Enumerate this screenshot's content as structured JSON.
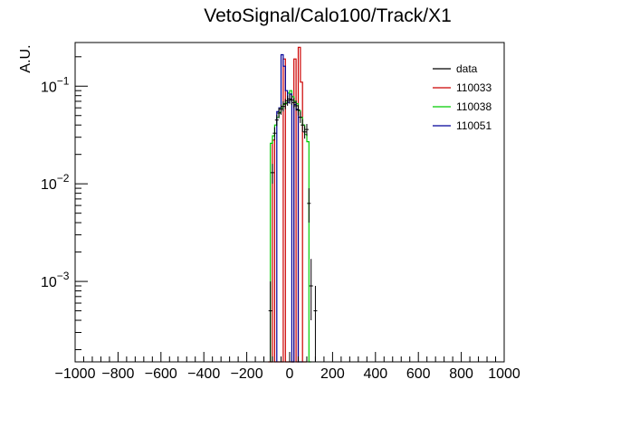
{
  "chart_data": {
    "type": "line",
    "title": "VetoSignal/Calo100/Track/X1",
    "xlabel": "",
    "ylabel": "A.U.",
    "xlim": [
      -1000,
      1000
    ],
    "ylim": [
      0.00015,
      0.28
    ],
    "yscale": "log",
    "grid": false,
    "legend_position": "top-right",
    "x_ticks": [
      -1000,
      -800,
      -600,
      -400,
      -200,
      0,
      200,
      400,
      600,
      800,
      1000
    ],
    "x_tick_labels": [
      "−1000",
      "−800",
      "−600",
      "−400",
      "−200",
      "0",
      "200",
      "400",
      "600",
      "800",
      "1000"
    ],
    "y_ticks": [
      {
        "base": "10",
        "exp": "−3",
        "value": 0.001
      },
      {
        "base": "10",
        "exp": "−2",
        "value": 0.01
      },
      {
        "base": "10",
        "exp": "−1",
        "value": 0.1
      }
    ],
    "series": [
      {
        "name": "data",
        "color": "#000000",
        "style": "points",
        "points": [
          {
            "x": -90,
            "y": 0.0005,
            "ylo": 0.00015,
            "yhi": 0.001
          },
          {
            "x": -80,
            "y": 0.013,
            "ylo": 0.01,
            "yhi": 0.016
          },
          {
            "x": -70,
            "y": 0.033,
            "ylo": 0.028,
            "yhi": 0.038
          },
          {
            "x": -60,
            "y": 0.045,
            "ylo": 0.039,
            "yhi": 0.051
          },
          {
            "x": -50,
            "y": 0.053,
            "ylo": 0.047,
            "yhi": 0.06
          },
          {
            "x": -40,
            "y": 0.058,
            "ylo": 0.051,
            "yhi": 0.065
          },
          {
            "x": -30,
            "y": 0.062,
            "ylo": 0.055,
            "yhi": 0.07
          },
          {
            "x": -20,
            "y": 0.066,
            "ylo": 0.058,
            "yhi": 0.074
          },
          {
            "x": -10,
            "y": 0.071,
            "ylo": 0.063,
            "yhi": 0.08
          },
          {
            "x": 0,
            "y": 0.074,
            "ylo": 0.066,
            "yhi": 0.083
          },
          {
            "x": 10,
            "y": 0.072,
            "ylo": 0.064,
            "yhi": 0.081
          },
          {
            "x": 20,
            "y": 0.068,
            "ylo": 0.06,
            "yhi": 0.076
          },
          {
            "x": 30,
            "y": 0.063,
            "ylo": 0.056,
            "yhi": 0.071
          },
          {
            "x": 40,
            "y": 0.057,
            "ylo": 0.05,
            "yhi": 0.064
          },
          {
            "x": 50,
            "y": 0.048,
            "ylo": 0.042,
            "yhi": 0.055
          },
          {
            "x": 60,
            "y": 0.04,
            "ylo": 0.034,
            "yhi": 0.046
          },
          {
            "x": 70,
            "y": 0.034,
            "ylo": 0.029,
            "yhi": 0.039
          },
          {
            "x": 80,
            "y": 0.036,
            "ylo": 0.031,
            "yhi": 0.041
          },
          {
            "x": 90,
            "y": 0.0063,
            "ylo": 0.004,
            "yhi": 0.009
          },
          {
            "x": 100,
            "y": 0.0009,
            "ylo": 0.0004,
            "yhi": 0.0017
          },
          {
            "x": 120,
            "y": 0.0005,
            "ylo": 0.00015,
            "yhi": 0.0009
          }
        ]
      },
      {
        "name": "110033",
        "color": "#cc0000",
        "style": "hist",
        "bin_edges": [
          -100,
          -90,
          -80,
          -70,
          -60,
          -50,
          -40,
          -30,
          -20,
          -10,
          0,
          10,
          20,
          30,
          40,
          50,
          60,
          70,
          80
        ],
        "values": [
          0.00015,
          0.00015,
          0.028,
          0.00015,
          0.00015,
          0.00015,
          0.00015,
          0.19,
          0.00015,
          0.00015,
          0.00015,
          0.00015,
          0.19,
          0.00015,
          0.25,
          0.11,
          0.00015,
          0.00015
        ]
      },
      {
        "name": "110038",
        "color": "#00cc00",
        "style": "hist",
        "bin_edges": [
          -90,
          -80,
          -70,
          -60,
          -50,
          -40,
          -30,
          -20,
          -10,
          0,
          10,
          20,
          30,
          40,
          50,
          60,
          70,
          80,
          90,
          100
        ],
        "values": [
          0.026,
          0.031,
          0.04,
          0.048,
          0.054,
          0.06,
          0.065,
          0.068,
          0.085,
          0.09,
          0.078,
          0.07,
          0.066,
          0.056,
          0.048,
          0.04,
          0.032,
          0.027,
          0.00015
        ]
      },
      {
        "name": "110051",
        "color": "#000099",
        "style": "hist",
        "bin_edges": [
          -60,
          -50,
          -40,
          -30,
          -20,
          -10,
          0,
          10,
          20,
          30,
          40,
          50,
          60
        ],
        "values": [
          0.055,
          0.06,
          0.21,
          0.16,
          0.09,
          0.068,
          0.083,
          0.00015,
          0.065,
          0.058,
          0.00015,
          0.00015
        ]
      }
    ]
  }
}
